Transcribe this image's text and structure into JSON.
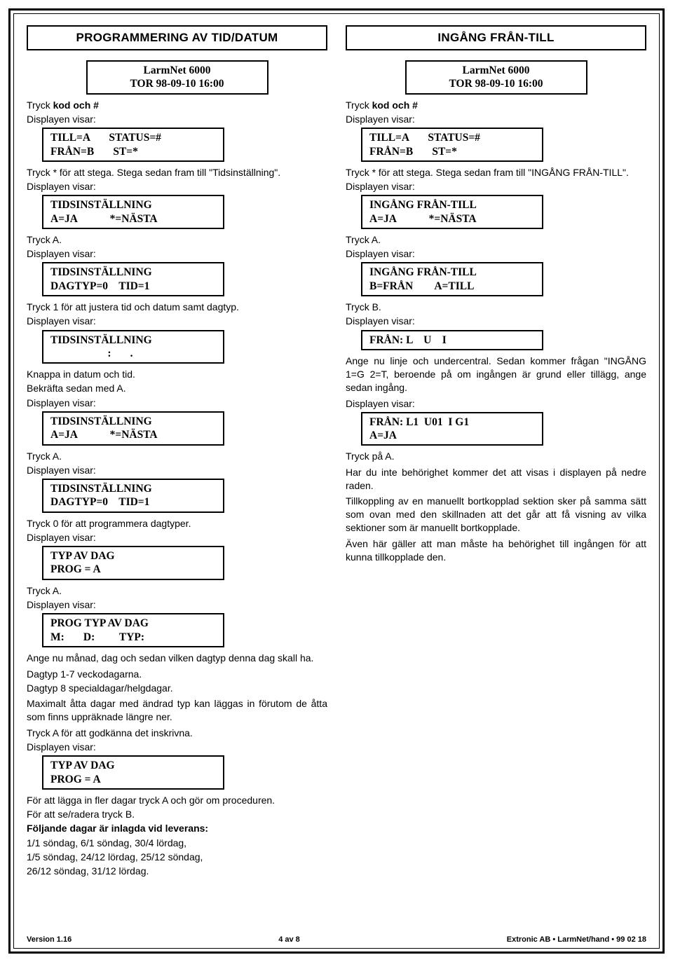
{
  "left": {
    "title": "PROGRAMMERING AV TID/DATUM",
    "d1": "LarmNet 6000\nTOR 98-09-10 16:00",
    "i1a": "Tryck ",
    "i1b": "kod och #",
    "i2": "Displayen visar:",
    "d2": "TILL=A       STATUS=#\nFRÅN=B       ST=*",
    "i3": "Tryck * för att stega. Stega sedan fram till \"Tidsinställning\".",
    "d3": "TIDSINSTÄLLNING\nA=JA            *=NÄSTA",
    "i4": "Tryck A.",
    "d4": "TIDSINSTÄLLNING\nDAGTYP=0    TID=1",
    "i5": "Tryck 1 för att justera tid och datum samt dagtyp.",
    "d5": "TIDSINSTÄLLNING\n                     :       .",
    "i6": "Knappa in datum och tid.",
    "i7": "Bekräfta sedan med A.",
    "d6": "TIDSINSTÄLLNING\nA=JA            *=NÄSTA",
    "d7": "TIDSINSTÄLLNING\nDAGTYP=0    TID=1",
    "i8": "Tryck 0 för att programmera dagtyper.",
    "d8": "TYP AV DAG\nPROG = A",
    "d9": "PROG TYP AV DAG\nM:       D:         TYP:",
    "p1": "Ange nu månad, dag och sedan vilken dagtyp denna dag skall ha.",
    "p2": "Dagtyp 1-7 veckodagarna.",
    "p3": "Dagtyp 8 specialdagar/helgdagar.",
    "p4": "Maximalt åtta dagar med ändrad typ kan läggas in förutom de åtta som finns uppräknade längre ner.",
    "p5": "Tryck A för att godkänna det inskrivna.",
    "d10": "TYP AV DAG\nPROG = A",
    "p6": "För att lägga in fler dagar tryck A och gör om proceduren.",
    "p7": "För att se/radera tryck B.",
    "p8": "Följande dagar är inlagda vid leverans:",
    "p9": "1/1 söndag, 6/1 söndag, 30/4 lördag,",
    "p10": "1/5 söndag, 24/12 lördag, 25/12 söndag,",
    "p11": "26/12 söndag, 31/12 lördag."
  },
  "right": {
    "title": "INGÅNG FRÅN-TILL",
    "d1": "LarmNet 6000\nTOR 98-09-10 16:00",
    "i1a": "Tryck ",
    "i1b": "kod och #",
    "i2": "Displayen visar:",
    "d2": "TILL=A       STATUS=#\nFRÅN=B       ST=*",
    "i3": "Tryck * för att stega. Stega sedan fram till \"INGÅNG FRÅN-TILL\".",
    "d3": "INGÅNG FRÅN-TILL\nA=JA            *=NÄSTA",
    "i4": "Tryck A.",
    "d4": "INGÅNG FRÅN-TILL\nB=FRÅN        A=TILL",
    "i5": "Tryck B.",
    "d5": "FRÅN: L    U    I",
    "p1": "Ange nu linje och undercentral. Sedan kommer frågan \"INGÅNG 1=G  2=T, beroende på om ingången är grund eller tillägg, ange sedan ingång.",
    "d6": "FRÅN: L1  U01  I G1\nA=JA",
    "i6": "Tryck på A.",
    "p2": "Har du inte behörighet kommer det att visas i displayen på nedre raden.",
    "p3": "Tillkoppling av en manuellt bortkopplad sektion sker på samma sätt som ovan med den skillnaden att det går att få visning av vilka sektioner som är manuellt bortkopplade.",
    "p4": "Även här gäller att man måste ha behörighet till ingången för att kunna tillkopplade den."
  },
  "footer": {
    "left": "Version 1.16",
    "center": "4 av 8",
    "right": "Extronic AB • LarmNet/hand • 99 02 18"
  }
}
